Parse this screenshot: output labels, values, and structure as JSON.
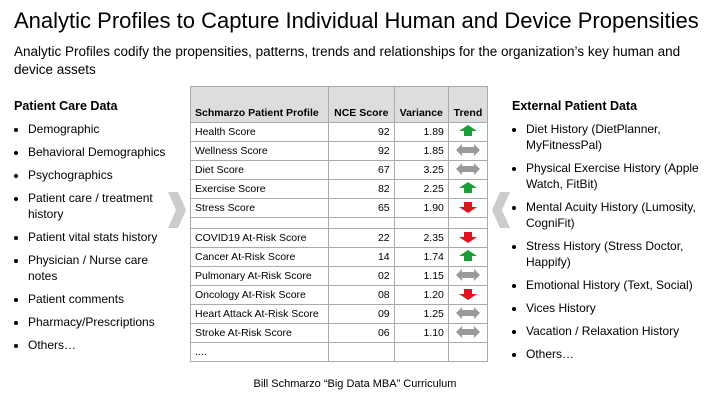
{
  "header": {
    "title": "Analytic Profiles to Capture Individual Human and Device Propensities",
    "subtitle": "Analytic Profiles codify the propensities, patterns, trends and relationships for the organization’s key human and device assets"
  },
  "left": {
    "heading": "Patient Care Data",
    "items": [
      "Demographic",
      "Behavioral Demographics",
      "Psychographics",
      "Patient care / treatment history",
      "Patient vital stats history",
      "Physician / Nurse care notes",
      "Patient comments",
      "Pharmacy/Prescriptions",
      "Others…"
    ]
  },
  "table": {
    "headers": [
      "Schmarzo Patient Profile",
      "NCE Score",
      "Variance",
      "Trend"
    ],
    "groups": [
      [
        [
          "Health Score",
          "92",
          "1.89",
          "up"
        ],
        [
          "Wellness Score",
          "92",
          "1.85",
          "flat"
        ],
        [
          "Diet Score",
          "67",
          "3.25",
          "flat"
        ],
        [
          "Exercise Score",
          "82",
          "2.25",
          "up"
        ],
        [
          "Stress Score",
          "65",
          "1.90",
          "down"
        ]
      ],
      [
        [
          "COVID19 At-Risk Score",
          "22",
          "2.35",
          "down"
        ],
        [
          "Cancer At-Risk Score",
          "14",
          "1.74",
          "up"
        ],
        [
          "Pulmonary At-Risk Score",
          "02",
          "1.15",
          "flat"
        ],
        [
          "Oncology At-Risk Score",
          "08",
          "1.20",
          "down"
        ],
        [
          "Heart Attack At-Risk Score",
          "09",
          "1.25",
          "flat"
        ],
        [
          "Stroke At-Risk Score",
          "06",
          "1.10",
          "flat"
        ]
      ]
    ],
    "ellipsis": "...."
  },
  "right": {
    "heading": "External Patient Data",
    "items": [
      "Diet History (DietPlanner, MyFitnessPal)",
      "Physical Exercise History (Apple Watch, FitBit)",
      "Mental Acuity History (Lumosity, CogniFit)",
      "Stress History (Stress Doctor, Happify)",
      "Emotional History (Text, Social)",
      "Vices History",
      "Vacation / Relaxation History",
      "Others…"
    ]
  },
  "footer": "Bill Schmarzo “Big Data MBA” Curriculum"
}
